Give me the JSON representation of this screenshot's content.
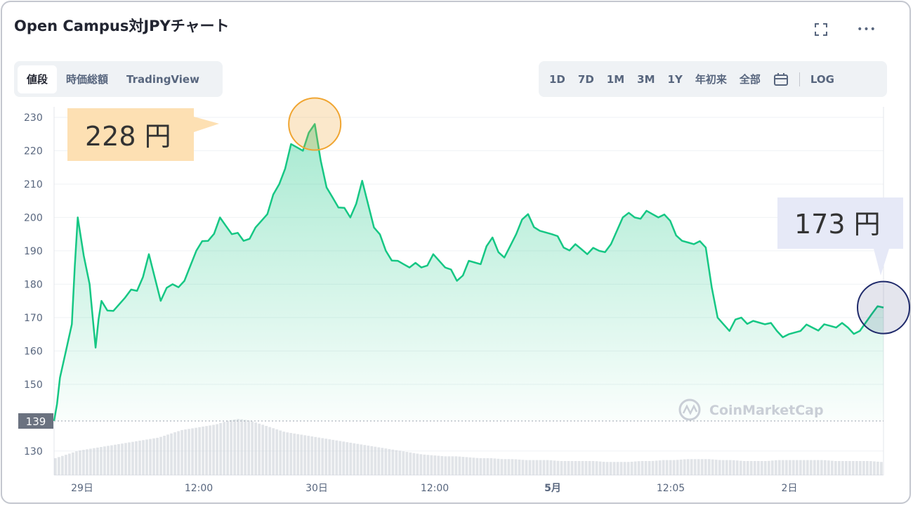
{
  "header": {
    "title": "Open Campus対JPYチャート",
    "expand_icon": "expand-icon",
    "more_icon": "more-icon",
    "more_glyph": "•••"
  },
  "view_tabs": [
    {
      "label": "値段",
      "active": true
    },
    {
      "label": "時価総額",
      "active": false
    },
    {
      "label": "TradingView",
      "active": false
    }
  ],
  "range_tabs": [
    "1D",
    "7D",
    "1M",
    "3M",
    "1Y",
    "年初来",
    "全部"
  ],
  "calendar_icon": "calendar-icon",
  "log_label": "LOG",
  "colors": {
    "line": "#16c784",
    "fill": "#16c784",
    "peak_bubble": "#fde0b3",
    "peak_circle": "#f0a531",
    "end_bubble": "#e6e9f7",
    "end_circle": "#1f2a6b",
    "baseline_label": "#6b7280"
  },
  "annotations": {
    "peak_label": "228 円",
    "end_label": "173 円",
    "baseline_label": "139"
  },
  "watermark": "CoinMarketCap",
  "chart_data": {
    "type": "area",
    "title": "Open Campus対JPYチャート",
    "ylabel": "",
    "xlabel": "",
    "ylim": [
      123,
      232
    ],
    "yticks": [
      130,
      150,
      160,
      170,
      180,
      190,
      200,
      210,
      220,
      230
    ],
    "baseline": 139,
    "grid": true,
    "x_tick_labels": [
      "29日",
      "12:00",
      "30日",
      "12:00",
      "5月",
      "12:05",
      "2日"
    ],
    "x": [
      0,
      0.5,
      1.5,
      2,
      3,
      3.5,
      4,
      5,
      6,
      7,
      8,
      9,
      10,
      11,
      12,
      13,
      14,
      15,
      16,
      17,
      18,
      19,
      20,
      21,
      22,
      23,
      24,
      25,
      26,
      27,
      28,
      29,
      30,
      31,
      32,
      33,
      34,
      35,
      36,
      37,
      38,
      39,
      40,
      41,
      42,
      43,
      44,
      45,
      46,
      47,
      48,
      49,
      50,
      51,
      52,
      53,
      54,
      55,
      56,
      57,
      58,
      59,
      60,
      61,
      62,
      63,
      64,
      65,
      66,
      67,
      68,
      69,
      70
    ],
    "series": [
      {
        "values": [
          139,
          152,
          168,
          200,
          180,
          161,
          175,
          172,
          176,
          178,
          189,
          175,
          180,
          181,
          190,
          193,
          200,
          195,
          193,
          197,
          201,
          210,
          222,
          220,
          228,
          209,
          203,
          200,
          211,
          197,
          190,
          187,
          185,
          185,
          189,
          185,
          181,
          187,
          186,
          194,
          188,
          195,
          201,
          196,
          195,
          191,
          192,
          189,
          190,
          192,
          200,
          200,
          202,
          200,
          199,
          193,
          192,
          191,
          170,
          166,
          170,
          169,
          168,
          166,
          165,
          166,
          167,
          168,
          167,
          167,
          166,
          171,
          173
        ]
      }
    ],
    "volume": [
      18,
      22,
      26,
      28,
      30,
      32,
      34,
      36,
      38,
      40,
      44,
      48,
      50,
      52,
      54,
      58,
      60,
      58,
      54,
      50,
      46,
      44,
      42,
      40,
      38,
      36,
      34,
      32,
      30,
      28,
      26,
      24,
      22,
      21,
      20,
      20,
      19,
      18,
      18,
      17,
      17,
      16,
      16,
      16,
      15,
      15,
      15,
      15,
      14,
      14,
      14,
      15,
      15,
      16,
      16,
      17,
      17,
      17,
      16,
      16,
      15,
      15,
      15,
      16,
      16,
      16,
      16,
      16,
      15,
      15,
      15,
      15,
      14
    ]
  }
}
